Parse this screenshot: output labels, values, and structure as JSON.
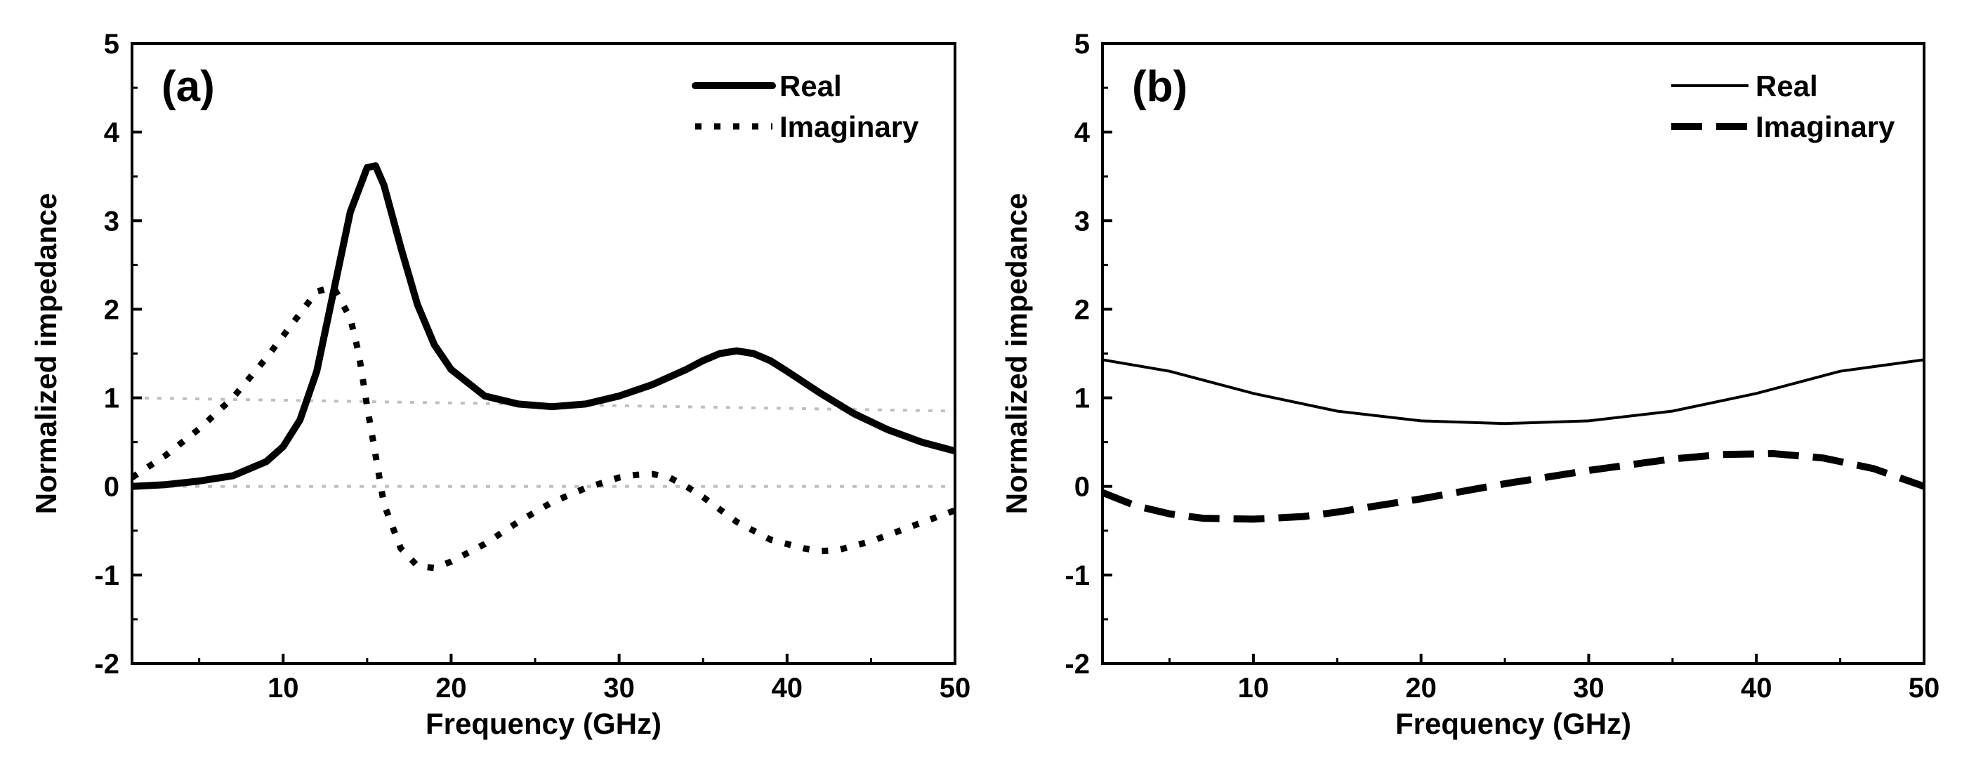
{
  "figure": {
    "background": "#ffffff",
    "line_color": "#000000",
    "reference_line_color": "#bfbfbf"
  },
  "chart_data": [
    {
      "type": "line",
      "panel_label": "(a)",
      "xlabel": "Frequency (GHz)",
      "ylabel": "Normalized impedance",
      "xlim": [
        1,
        50
      ],
      "ylim": [
        -2,
        5
      ],
      "xticks": [
        10,
        20,
        30,
        40,
        50
      ],
      "yticks": [
        -2,
        -1,
        0,
        1,
        2,
        3,
        4,
        5
      ],
      "grid": false,
      "legend_position": "top-right",
      "reference_lines": [
        {
          "name": "reference-one",
          "x": [
            1,
            50
          ],
          "y": [
            1.0,
            0.85
          ],
          "style": "dotted",
          "color": "#bfbfbf"
        },
        {
          "name": "reference-zero",
          "x": [
            1,
            50
          ],
          "y": [
            0,
            0
          ],
          "style": "dotted",
          "color": "#bfbfbf"
        }
      ],
      "series": [
        {
          "name": "Real",
          "style": "solid-thick",
          "x": [
            1,
            3,
            5,
            7,
            9,
            10,
            11,
            12,
            13,
            14,
            15,
            15.5,
            16,
            17,
            18,
            19,
            20,
            22,
            24,
            26,
            28,
            30,
            32,
            34,
            35,
            36,
            37,
            38,
            39,
            40,
            42,
            44,
            46,
            48,
            50
          ],
          "y": [
            0.0,
            0.02,
            0.06,
            0.12,
            0.28,
            0.45,
            0.75,
            1.3,
            2.2,
            3.1,
            3.6,
            3.62,
            3.4,
            2.7,
            2.05,
            1.6,
            1.32,
            1.02,
            0.93,
            0.9,
            0.93,
            1.02,
            1.15,
            1.32,
            1.42,
            1.5,
            1.53,
            1.5,
            1.42,
            1.3,
            1.05,
            0.82,
            0.64,
            0.5,
            0.4
          ]
        },
        {
          "name": "Imaginary",
          "style": "dotted",
          "x": [
            1,
            3,
            5,
            7,
            9,
            11,
            12,
            13,
            14,
            14.5,
            15,
            16,
            17,
            18,
            19,
            20,
            22,
            24,
            26,
            28,
            30,
            31,
            32,
            33,
            34,
            35,
            37,
            39,
            41,
            42,
            43,
            45,
            47,
            50
          ],
          "y": [
            0.1,
            0.35,
            0.65,
            1.0,
            1.45,
            1.95,
            2.2,
            2.25,
            1.9,
            1.5,
            0.9,
            -0.2,
            -0.7,
            -0.9,
            -0.92,
            -0.85,
            -0.65,
            -0.4,
            -0.18,
            -0.02,
            0.1,
            0.13,
            0.14,
            0.1,
            0.0,
            -0.12,
            -0.4,
            -0.6,
            -0.7,
            -0.73,
            -0.72,
            -0.62,
            -0.48,
            -0.27
          ]
        }
      ]
    },
    {
      "type": "line",
      "panel_label": "(b)",
      "xlabel": "Frequency (GHz)",
      "ylabel": "Normalized impedance",
      "xlim": [
        1,
        50
      ],
      "ylim": [
        -2,
        5
      ],
      "xticks": [
        10,
        20,
        30,
        40,
        50
      ],
      "yticks": [
        -2,
        -1,
        0,
        1,
        2,
        3,
        4,
        5
      ],
      "grid": false,
      "legend_position": "top-right",
      "reference_lines": [],
      "series": [
        {
          "name": "Real",
          "style": "solid-thin",
          "x": [
            1,
            5,
            10,
            15,
            20,
            25,
            30,
            35,
            40,
            45,
            50
          ],
          "y": [
            1.43,
            1.3,
            1.05,
            0.85,
            0.74,
            0.71,
            0.74,
            0.85,
            1.05,
            1.3,
            1.43
          ]
        },
        {
          "name": "Imaginary",
          "style": "dashed-thick",
          "x": [
            1,
            3,
            5,
            7,
            10,
            13,
            15,
            20,
            25,
            30,
            35,
            38,
            41,
            44,
            47,
            50
          ],
          "y": [
            -0.07,
            -0.22,
            -0.31,
            -0.36,
            -0.37,
            -0.34,
            -0.29,
            -0.14,
            0.03,
            0.18,
            0.31,
            0.36,
            0.37,
            0.32,
            0.2,
            0.0
          ]
        }
      ]
    }
  ]
}
